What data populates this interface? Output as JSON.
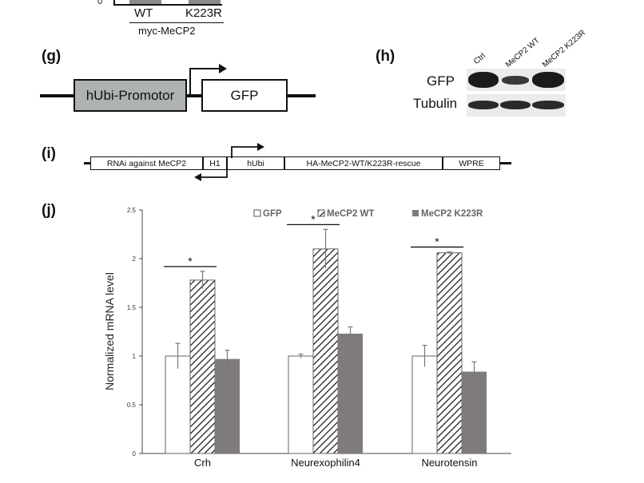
{
  "panel_top": {
    "y_zero": "0",
    "labels": [
      "WT",
      "K223R"
    ],
    "group_label": "myc-MeCP2"
  },
  "panel_g": {
    "letter": "(g)",
    "promoter": "hUbi-Promotor",
    "reporter": "GFP"
  },
  "panel_h": {
    "letter": "(h)",
    "lanes": [
      "Ctrl",
      "MeCP2 WT",
      "MeCP2 K223R"
    ],
    "rows": [
      "GFP",
      "Tubulin"
    ]
  },
  "panel_i": {
    "letter": "(i)",
    "segments": [
      "RNAi against MeCP2",
      "H1",
      "hUbi",
      "HA-MeCP2-WT/K223R-rescue",
      "WPRE"
    ]
  },
  "panel_j": {
    "letter": "(j)",
    "colors": {
      "GFP": "#ffffff",
      "MeCP2 WT": "hatched",
      "MeCP2 K223R": "#7f7a7b"
    }
  },
  "chart_data": {
    "type": "bar",
    "categories": [
      "Crh",
      "Neurexophilin4",
      "Neurotensin"
    ],
    "series": [
      {
        "name": "GFP",
        "values": [
          1.0,
          1.0,
          1.0
        ],
        "errors": [
          0.13,
          0.02,
          0.11
        ]
      },
      {
        "name": "MeCP2 WT",
        "values": [
          1.78,
          2.1,
          2.06
        ],
        "errors": [
          0.09,
          0.2,
          0.01
        ]
      },
      {
        "name": "MeCP2 K223R",
        "values": [
          0.97,
          1.23,
          0.84
        ],
        "errors": [
          0.09,
          0.07,
          0.1
        ]
      }
    ],
    "ylabel": "Normalized mRNA level",
    "ylim": [
      0,
      2.5
    ],
    "yticks": [
      "0",
      "0.5",
      "1",
      "1.5",
      "2",
      "2.5"
    ],
    "significance": [
      "*",
      "*",
      "*"
    ],
    "legend_position": "top-right",
    "grid": false
  }
}
